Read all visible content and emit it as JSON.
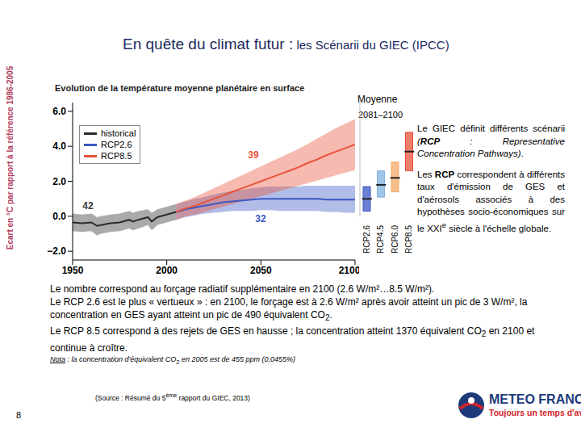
{
  "title": "En quête du climat futur :",
  "subtitle": "les Scénarii du GIEC (IPCC)",
  "chart_data": [
    {
      "type": "line",
      "title": "Evolution de la température moyenne planétaire en surface",
      "y_label": "Ecart en °C par rapport à la référence 1986-2005",
      "xlim": [
        1950,
        2100
      ],
      "xticks": [
        1950,
        2000,
        2050,
        2100
      ],
      "ylim": [
        -2.5,
        6.5
      ],
      "yticks": [
        {
          "value": -2,
          "label": "−2.0"
        },
        {
          "value": 0,
          "label": "0.0"
        },
        {
          "value": 2,
          "label": "2.0"
        },
        {
          "value": 4,
          "label": "4.0"
        },
        {
          "value": 6,
          "label": "6.0"
        }
      ],
      "grid": false,
      "series": [
        {
          "name": "historical",
          "color": "#2b2b2b",
          "x": [
            1950,
            1955,
            1960,
            1963,
            1965,
            1970,
            1975,
            1980,
            1982,
            1985,
            1990,
            1992,
            1995,
            2000,
            2005
          ],
          "values": [
            -0.35,
            -0.4,
            -0.35,
            -0.55,
            -0.5,
            -0.4,
            -0.35,
            -0.2,
            -0.3,
            -0.2,
            -0.05,
            -0.3,
            -0.05,
            0.1,
            0.25
          ],
          "low": [
            -0.85,
            -0.9,
            -0.85,
            -1.1,
            -1.0,
            -0.9,
            -0.85,
            -0.7,
            -0.8,
            -0.7,
            -0.5,
            -0.8,
            -0.5,
            -0.35,
            -0.2
          ],
          "high": [
            0.15,
            0.1,
            0.15,
            -0.05,
            0.0,
            0.1,
            0.15,
            0.3,
            0.2,
            0.3,
            0.4,
            0.2,
            0.4,
            0.55,
            0.7
          ]
        },
        {
          "name": "RCP2.6",
          "color": "#3b57c4",
          "x": [
            2005,
            2010,
            2015,
            2020,
            2025,
            2030,
            2035,
            2040,
            2045,
            2050,
            2055,
            2060,
            2065,
            2070,
            2075,
            2080,
            2085,
            2090,
            2095,
            2100
          ],
          "values": [
            0.25,
            0.4,
            0.5,
            0.6,
            0.7,
            0.8,
            0.85,
            0.9,
            0.95,
            1.0,
            1.0,
            1.0,
            1.0,
            1.0,
            1.0,
            1.0,
            0.95,
            0.95,
            0.95,
            0.95
          ],
          "low": [
            -0.2,
            -0.05,
            0.05,
            0.15,
            0.2,
            0.25,
            0.3,
            0.3,
            0.3,
            0.35,
            0.35,
            0.3,
            0.3,
            0.3,
            0.3,
            0.3,
            0.25,
            0.25,
            0.2,
            0.2
          ],
          "high": [
            0.7,
            0.85,
            1.0,
            1.1,
            1.25,
            1.35,
            1.45,
            1.5,
            1.6,
            1.65,
            1.7,
            1.7,
            1.7,
            1.7,
            1.75,
            1.75,
            1.75,
            1.75,
            1.75,
            1.75
          ]
        },
        {
          "name": "RCP8.5",
          "color": "#e8523a",
          "x": [
            2005,
            2010,
            2015,
            2020,
            2025,
            2030,
            2035,
            2040,
            2045,
            2050,
            2055,
            2060,
            2065,
            2070,
            2075,
            2080,
            2085,
            2090,
            2095,
            2100
          ],
          "values": [
            0.25,
            0.45,
            0.6,
            0.8,
            1.0,
            1.2,
            1.4,
            1.6,
            1.8,
            2.0,
            2.2,
            2.4,
            2.6,
            2.8,
            3.05,
            3.25,
            3.5,
            3.7,
            3.9,
            4.1
          ],
          "low": [
            -0.2,
            0.0,
            0.1,
            0.25,
            0.4,
            0.55,
            0.7,
            0.85,
            1.0,
            1.15,
            1.3,
            1.45,
            1.6,
            1.75,
            1.9,
            2.05,
            2.2,
            2.35,
            2.5,
            2.65
          ],
          "high": [
            0.7,
            0.9,
            1.1,
            1.35,
            1.6,
            1.85,
            2.1,
            2.35,
            2.6,
            2.85,
            3.1,
            3.35,
            3.6,
            3.85,
            4.15,
            4.45,
            4.75,
            5.05,
            5.3,
            5.55
          ]
        }
      ],
      "annotations": [
        {
          "text": "39",
          "color": "#e8523a"
        },
        {
          "text": "42",
          "color": "#3a3a3a"
        },
        {
          "text": "32",
          "color": "#3b57c4"
        }
      ]
    },
    {
      "type": "range_bar",
      "title": "Moyenne",
      "subtitle": "2081–2100",
      "categories": [
        "RCP2.6",
        "RCP4.5",
        "RCP6.0",
        "RCP8.5"
      ],
      "low": [
        0.3,
        1.1,
        1.4,
        2.6
      ],
      "high": [
        1.7,
        2.6,
        3.1,
        4.8
      ],
      "mean": [
        1.0,
        1.8,
        2.2,
        3.7
      ],
      "colors": [
        "#3b57c4",
        "#7fb1de",
        "#f6a866",
        "#e8523a"
      ],
      "ylim": [
        0,
        6.5
      ],
      "tick_labels": "x"
    }
  ],
  "side_text": [
    [
      {
        "text": "Le GIEC définit différents scénarii "
      },
      {
        "text": "(",
        "italic": true
      },
      {
        "text": "RCP",
        "bold": true,
        "italic": true
      },
      {
        "text": " : Representative Concentration Pathways)",
        "italic": true
      },
      {
        "text": "."
      }
    ],
    [
      {
        "text": "Les "
      },
      {
        "text": "RCP",
        "bold": true
      },
      {
        "text": " correspondent à différents taux d'émission de GES et d'aérosols associés à des hypothèses socio-économiques sur le XXI"
      },
      {
        "text": "e",
        "sup": true
      },
      {
        "text": " siècle à l'échelle globale."
      }
    ]
  ],
  "notes": [
    [
      {
        "text": "Le nombre correspond au forçage radiatif supplémentaire en 2100 (2.6 W/m²…8.5 W/m²)."
      }
    ],
    [
      {
        "text": "Le RCP 2.6  est le plus « vertueux » : en 2100, le forçage est à 2.6 W/m² après avoir atteint un pic de 3 W/m², la concentration en GES ayant atteint un pic de 490 équivalent CO"
      },
      {
        "text": "2",
        "sub": true
      },
      {
        "text": "."
      }
    ],
    [
      {
        "text": "Le RCP 8.5 correspond à des rejets de GES en hausse ; la concentration atteint 1370 équivalent CO"
      },
      {
        "text": "2",
        "sub": true
      },
      {
        "text": " en 2100 et continue à croître."
      }
    ]
  ],
  "nota": [
    {
      "text": "Nota",
      "underline": true,
      "italic": true
    },
    {
      "text": " : la concentration d'équivalent CO",
      "italic": true
    },
    {
      "text": "2",
      "sub": true
    },
    {
      "text": " en 2005 est de 455 ppm (0,0455%)",
      "italic": true
    }
  ],
  "source": [
    {
      "text": "(Source : Résumé du 5"
    },
    {
      "text": "ème",
      "sup": true
    },
    {
      "text": " rapport du GIEC, 2013)"
    }
  ],
  "page": "8",
  "logo": {
    "name": "METEO FRANCE",
    "tagline": "Toujours un temps d'avance"
  }
}
